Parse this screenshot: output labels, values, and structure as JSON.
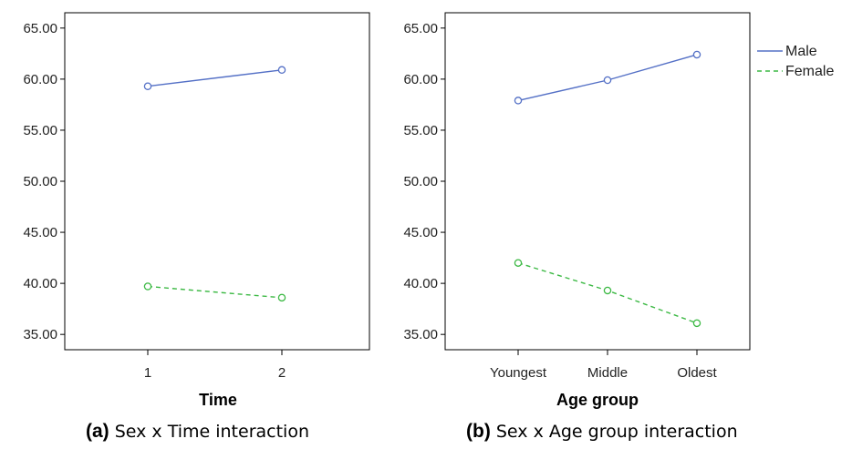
{
  "chart_data": [
    {
      "type": "line",
      "caption_letter": "(a)",
      "caption_text": "Sex x Time interaction",
      "xlabel": "Time",
      "ylabel": "",
      "categories": [
        "1",
        "2"
      ],
      "ylim": [
        33.5,
        66.5
      ],
      "yticks": [
        "65.00",
        "60.00",
        "55.00",
        "50.00",
        "45.00",
        "40.00",
        "35.00"
      ],
      "series": [
        {
          "name": "Male",
          "values": [
            59.3,
            60.9
          ]
        },
        {
          "name": "Female",
          "values": [
            39.7,
            38.6
          ]
        }
      ]
    },
    {
      "type": "line",
      "caption_letter": "(b)",
      "caption_text": "Sex x Age group interaction",
      "xlabel": "Age group",
      "ylabel": "",
      "categories": [
        "Youngest",
        "Middle",
        "Oldest"
      ],
      "ylim": [
        33.5,
        66.5
      ],
      "yticks": [
        "65.00",
        "60.00",
        "55.00",
        "50.00",
        "45.00",
        "40.00",
        "35.00"
      ],
      "series": [
        {
          "name": "Male",
          "values": [
            57.9,
            59.9,
            62.4
          ]
        },
        {
          "name": "Female",
          "values": [
            42.0,
            39.3,
            36.1
          ]
        }
      ]
    }
  ],
  "legend": {
    "placement": "right",
    "items": [
      {
        "label": "Male",
        "color": "#5470c6",
        "style": "solid"
      },
      {
        "label": "Female",
        "color": "#3cb944",
        "style": "dashed"
      }
    ]
  }
}
